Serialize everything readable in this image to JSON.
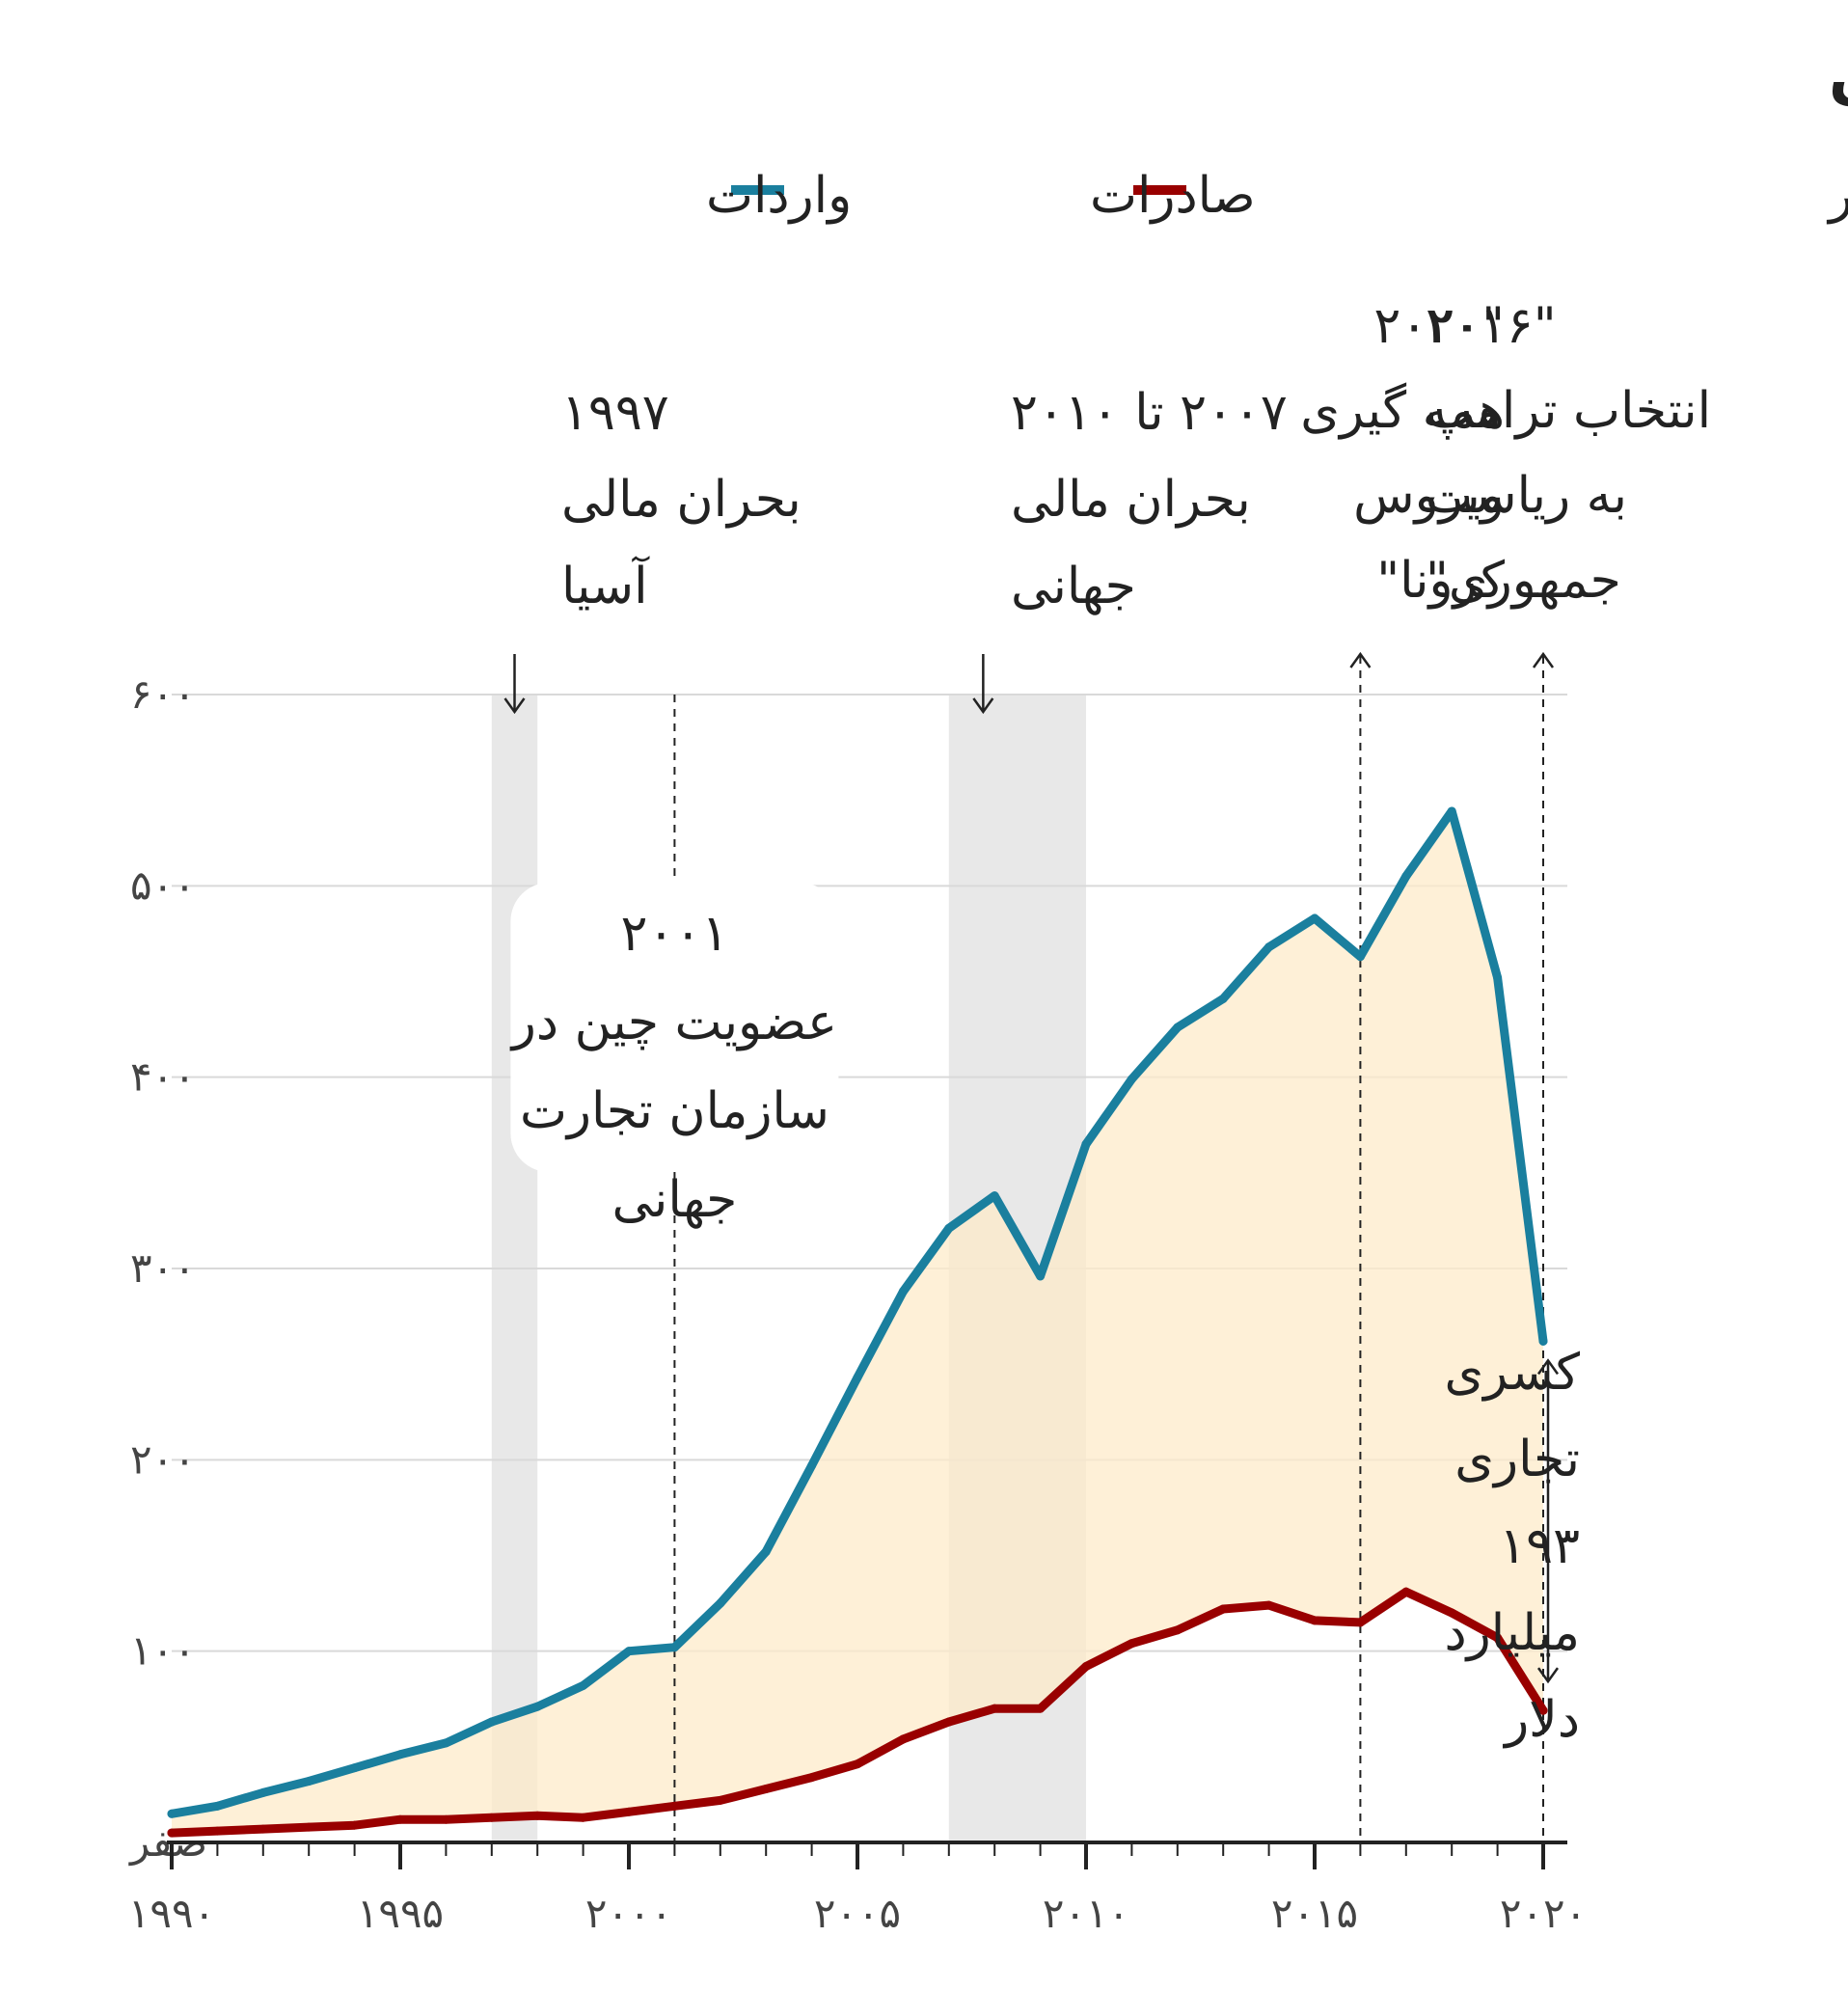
{
  "title": "تجارت آمریکا با چین",
  "unit_label": "به میلیارد دلار",
  "legend": [
    {
      "name": "صادرات",
      "color": "#990000"
    },
    {
      "name": "واردات",
      "color": "#1a7f9e"
    }
  ],
  "chart_data": {
    "type": "line",
    "x": [
      1990,
      1991,
      1992,
      1993,
      1994,
      1995,
      1996,
      1997,
      1998,
      1999,
      2000,
      2001,
      2002,
      2003,
      2004,
      2005,
      2006,
      2007,
      2008,
      2009,
      2010,
      2011,
      2012,
      2013,
      2014,
      2015,
      2016,
      2017,
      2018,
      2019,
      2020
    ],
    "series": [
      {
        "name": "واردات",
        "color": "#1a7f9e",
        "values": [
          15,
          19,
          26,
          32,
          39,
          46,
          52,
          63,
          71,
          82,
          100,
          102,
          125,
          152,
          197,
          243,
          288,
          321,
          338,
          296,
          365,
          399,
          426,
          441,
          468,
          483,
          463,
          505,
          539,
          452,
          262
        ]
      },
      {
        "name": "صادرات",
        "color": "#990000",
        "values": [
          5,
          6,
          7,
          8,
          9,
          12,
          12,
          13,
          14,
          13,
          16,
          19,
          22,
          28,
          34,
          41,
          54,
          63,
          70,
          70,
          92,
          104,
          111,
          122,
          124,
          116,
          115,
          131,
          120,
          107,
          69
        ]
      }
    ],
    "fill_between": {
      "color": "#fdebc9"
    },
    "xlim": [
      1990,
      2020
    ],
    "ylim": [
      0,
      600
    ],
    "x_ticks": [
      1990,
      1995,
      2000,
      2005,
      2010,
      2015,
      2020
    ],
    "x_tick_labels": [
      "۱۹۹۰",
      "۱۹۹۵",
      "۲۰۰۰",
      "۲۰۰۵",
      "۲۰۱۰",
      "۲۰۱۵",
      "۲۰۲۰"
    ],
    "y_ticks": [
      0,
      100,
      200,
      300,
      400,
      500,
      600
    ],
    "y_tick_labels": [
      "صفر",
      "۱۰۰",
      "۲۰۰",
      "۳۰۰",
      "۴۰۰",
      "۵۰۰",
      "۶۰۰"
    ],
    "grid": true,
    "shaded_periods": [
      {
        "start": 1997,
        "end": 1998,
        "color": "#e8e8e8"
      },
      {
        "start": 2007,
        "end": 2010,
        "color": "#e8e8e8"
      }
    ],
    "annotations": [
      {
        "id": "asia-crisis",
        "lines": [
          "۱۹۹۷",
          "بحران مالی",
          "آسیا"
        ],
        "x": 1997.5,
        "arrow": "down"
      },
      {
        "id": "global-crisis",
        "lines": [
          "۲۰۰۷ تا ۲۰۱۰",
          "بحران مالی",
          "جهانی"
        ],
        "x": 2007.75,
        "arrow": "down"
      },
      {
        "id": "trump-election",
        "lines": [
          "\"۲۰۱۶",
          "انتخاب ترامپ",
          "به ریاست",
          "جمهوری\""
        ],
        "x": 2016,
        "arrow": "up",
        "dashed": true
      },
      {
        "id": "covid",
        "lines": [
          "\"۲۰۲۰",
          "همه گیری",
          "ویروس",
          "کرونا\""
        ],
        "x": 2020,
        "arrow": "up",
        "dashed": true
      },
      {
        "id": "wto",
        "lines": [
          "۲۰۰۱",
          "عضویت چین در",
          "سازمان تجارت",
          "جهانی"
        ],
        "x": 2001,
        "dashed": true
      },
      {
        "id": "trade-deficit",
        "lines": [
          "کسری",
          "تجاری",
          "۱۹۳",
          "میلیارد",
          "دلار"
        ],
        "x": 2020,
        "range": [
          69,
          262
        ]
      }
    ]
  }
}
